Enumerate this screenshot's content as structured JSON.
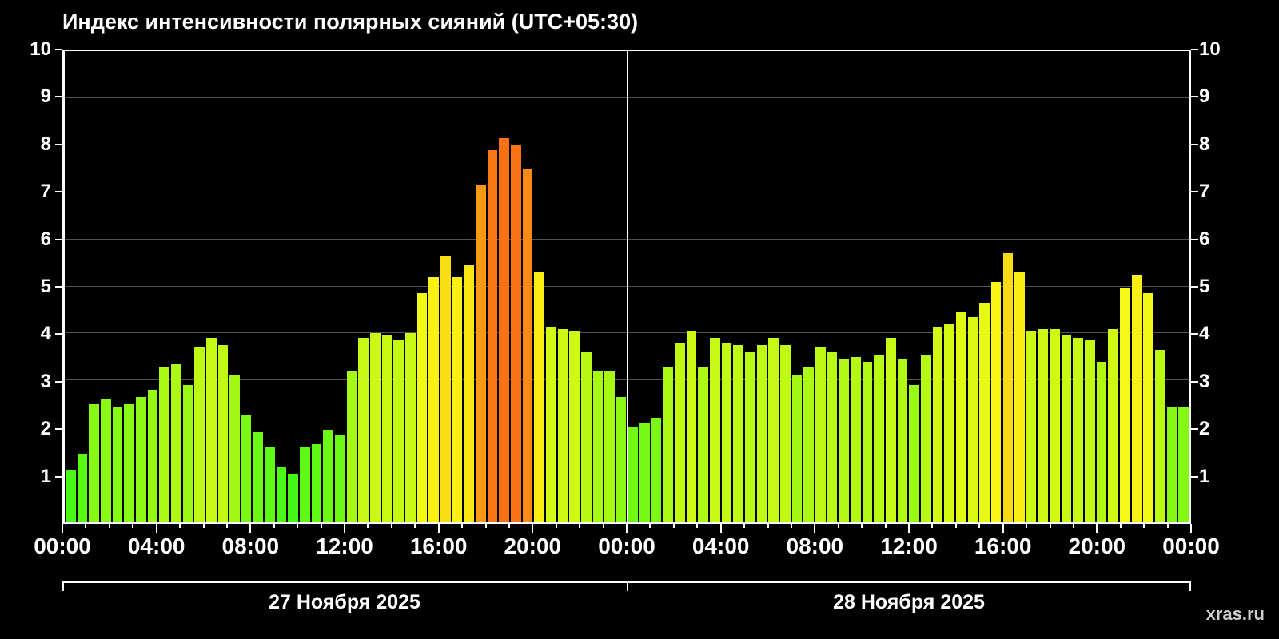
{
  "title": "Индекс интенсивности полярных сияний (UTC+05:30)",
  "watermark": "xras.ru",
  "chart_data": {
    "type": "bar",
    "title": "Индекс интенсивности полярных сияний (UTC+05:30)",
    "ylabel": "",
    "xlabel": "",
    "ylim": [
      0,
      10
    ],
    "y_ticks": [
      1,
      2,
      3,
      4,
      5,
      6,
      7,
      8,
      9,
      10
    ],
    "grid": "horizontal",
    "legend": "none",
    "interval_minutes": 30,
    "x_tick_labels": [
      "00:00",
      "04:00",
      "08:00",
      "12:00",
      "16:00",
      "20:00",
      "00:00",
      "04:00",
      "08:00",
      "12:00",
      "16:00",
      "20:00",
      "00:00"
    ],
    "date_labels": [
      "27 Ноября 2025",
      "28 Ноября 2025"
    ],
    "color_scale": {
      "low_green": "#5ce01c",
      "mid_yellow": "#f0e614",
      "high_orange": "#ee7a1a",
      "rule": "hue 108 (green) at value 1 decreasing to hue 24 (orange) at value 8"
    },
    "values": [
      1.1,
      1.45,
      2.5,
      2.6,
      2.45,
      2.5,
      2.65,
      2.8,
      3.3,
      3.35,
      2.9,
      3.7,
      3.9,
      3.75,
      3.1,
      2.25,
      1.9,
      1.6,
      1.15,
      1.0,
      1.6,
      1.65,
      1.95,
      1.85,
      3.2,
      3.9,
      4.0,
      3.95,
      3.85,
      4.0,
      4.85,
      5.2,
      5.65,
      5.2,
      5.45,
      7.15,
      7.9,
      8.15,
      8.0,
      7.5,
      5.3,
      4.15,
      4.1,
      4.05,
      3.6,
      3.2,
      3.2,
      2.65,
      2.0,
      2.1,
      2.2,
      3.3,
      3.8,
      4.05,
      3.3,
      3.9,
      3.8,
      3.75,
      3.6,
      3.75,
      3.9,
      3.75,
      3.1,
      3.3,
      3.7,
      3.6,
      3.45,
      3.5,
      3.4,
      3.55,
      3.9,
      3.45,
      2.9,
      3.55,
      4.15,
      4.2,
      4.45,
      4.35,
      4.65,
      5.1,
      5.7,
      5.3,
      4.05,
      4.1,
      4.1,
      3.95,
      3.9,
      3.85,
      3.4,
      4.1,
      4.95,
      5.25,
      4.85,
      3.65,
      2.45,
      2.45
    ]
  }
}
